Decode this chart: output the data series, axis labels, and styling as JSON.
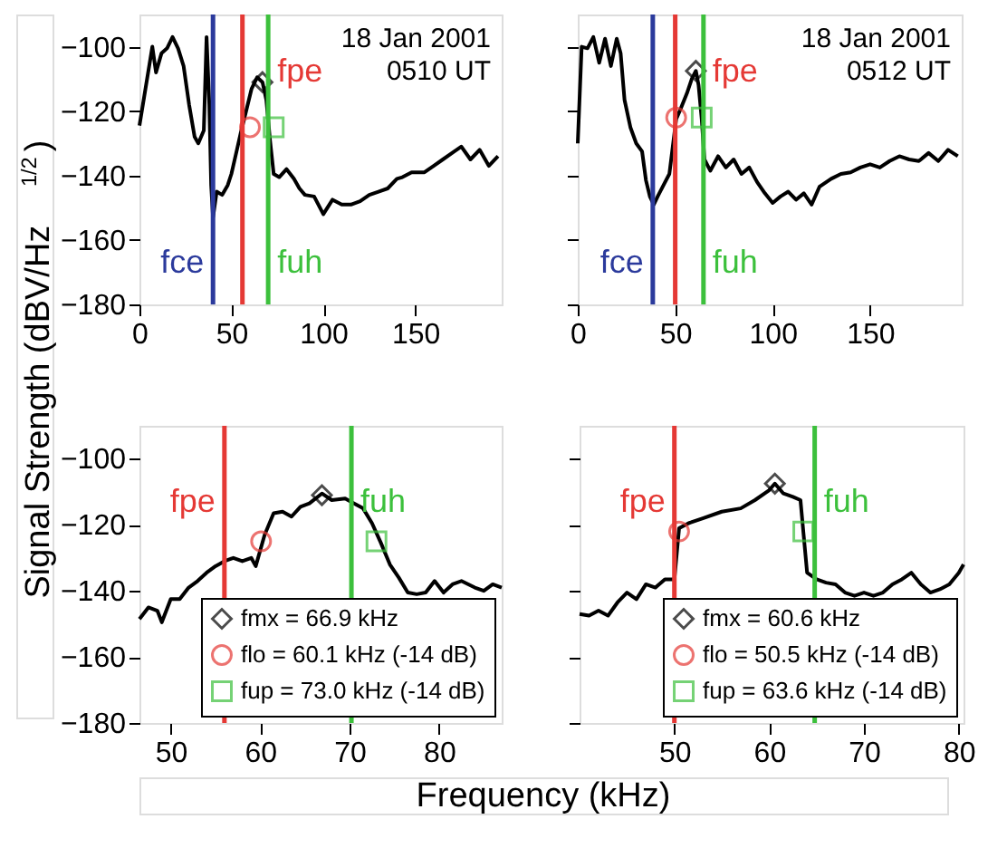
{
  "chart_data": [
    {
      "type": "line",
      "ylabel": "Signal Strength (dBV/Hz$^{1/2}$)",
      "annotations": [
        "18 Jan 2001",
        "0510 UT"
      ],
      "xlim": [
        0,
        197
      ],
      "ylim": [
        -180,
        -90
      ],
      "xticks": [
        0,
        50,
        100,
        150
      ],
      "yticks": [
        -180,
        -160,
        -140,
        -120,
        -100
      ],
      "ref_lines": [
        {
          "axis": "x",
          "value": 40,
          "label": "fce",
          "color": "#2b3a9c"
        },
        {
          "axis": "x",
          "value": 56,
          "label": "fpe",
          "color": "#e53935"
        },
        {
          "axis": "x",
          "value": 70,
          "label": "fuh",
          "color": "#3cc03c"
        }
      ],
      "series": [
        {
          "color": "#000000",
          "x": [
            0,
            3,
            7,
            9,
            12,
            15,
            18,
            21,
            24,
            27,
            30,
            32,
            35,
            36.5,
            38,
            39,
            40,
            42,
            45,
            48,
            50,
            53,
            55,
            58,
            61,
            64,
            66.9,
            69,
            71,
            73,
            76,
            80,
            84,
            87,
            90,
            95,
            100,
            105,
            110,
            115,
            120,
            125,
            130,
            135,
            140,
            143,
            148,
            155,
            160,
            165,
            170,
            175,
            180,
            185,
            190,
            195
          ],
          "values": [
            -124.5,
            -114,
            -100,
            -108,
            -102,
            -100.5,
            -97,
            -100.5,
            -106,
            -118,
            -128,
            -130,
            -126,
            -97,
            -118,
            -143,
            -153,
            -145,
            -146,
            -143,
            -139.5,
            -132,
            -127,
            -120,
            -113,
            -109.5,
            -111,
            -116.5,
            -129,
            -139.5,
            -140.5,
            -138,
            -141,
            -144,
            -146,
            -146.5,
            -152,
            -147.5,
            -149,
            -149,
            -148,
            -146,
            -145,
            -144,
            -141,
            -140.5,
            -139,
            -139,
            -137,
            -135,
            -133,
            -131,
            -135,
            -132,
            -137,
            -134
          ]
        },
        {
          "type": "scatter",
          "marker": "diamond",
          "color": "#000000",
          "x": [
            66.9
          ],
          "values": [
            -111
          ]
        },
        {
          "type": "scatter",
          "marker": "circle",
          "color": "#e53935",
          "x": [
            60.1
          ],
          "values": [
            -125
          ]
        },
        {
          "type": "scatter",
          "marker": "square",
          "color": "#3cc03c",
          "x": [
            73.0
          ],
          "values": [
            -125
          ]
        }
      ]
    },
    {
      "type": "line",
      "annotations": [
        "18 Jan 2001",
        "0512 UT"
      ],
      "xlim": [
        0,
        197
      ],
      "ylim": [
        -180,
        -90
      ],
      "xticks": [
        0,
        50,
        100,
        150
      ],
      "yticks": [
        -180,
        -160,
        -140,
        -120,
        -100
      ],
      "tick_labels": "x",
      "ref_lines": [
        {
          "axis": "x",
          "value": 38.5,
          "label": "fce",
          "color": "#2b3a9c"
        },
        {
          "axis": "x",
          "value": 50,
          "label": "fpe",
          "color": "#e53935"
        },
        {
          "axis": "x",
          "value": 64.5,
          "label": "fuh",
          "color": "#3cc03c"
        }
      ],
      "series": [
        {
          "color": "#000000",
          "x": [
            0,
            2,
            5,
            8,
            11,
            14,
            17,
            20,
            22,
            24,
            27,
            30,
            33,
            35,
            37,
            39,
            41,
            44,
            47,
            50.5,
            53,
            56,
            58.5,
            60.6,
            62,
            63.6,
            65,
            68,
            72,
            76,
            80,
            84,
            88,
            92,
            96,
            100,
            104,
            108,
            112,
            116,
            120,
            124,
            130,
            135,
            140,
            145,
            150,
            155,
            160,
            165,
            170,
            175,
            180,
            185,
            190,
            195
          ],
          "values": [
            -130,
            -100,
            -100.5,
            -97,
            -105,
            -97.5,
            -106,
            -97.5,
            -102,
            -116.5,
            -125,
            -130,
            -132.5,
            -141.5,
            -146.5,
            -149,
            -146.5,
            -143,
            -139.5,
            -122.5,
            -119,
            -114.5,
            -110,
            -107.5,
            -112,
            -122.5,
            -135,
            -138.5,
            -134,
            -137.5,
            -135,
            -139.5,
            -137.5,
            -142,
            -145.5,
            -148.5,
            -146.5,
            -145,
            -147.5,
            -145.5,
            -149,
            -143.5,
            -141,
            -139.5,
            -139,
            -137.5,
            -136.5,
            -137.5,
            -135.5,
            -134,
            -135,
            -135.5,
            -133,
            -135.5,
            -132,
            -134
          ]
        },
        {
          "type": "scatter",
          "marker": "diamond",
          "color": "#000000",
          "x": [
            60.6
          ],
          "values": [
            -107.5
          ]
        },
        {
          "type": "scatter",
          "marker": "circle",
          "color": "#e53935",
          "x": [
            50.5
          ],
          "values": [
            -122
          ]
        },
        {
          "type": "scatter",
          "marker": "square",
          "color": "#3cc03c",
          "x": [
            63.6
          ],
          "values": [
            -122
          ]
        }
      ]
    },
    {
      "type": "line",
      "xlabel": "Frequency (kHz)",
      "xlim": [
        46.5,
        87
      ],
      "ylim": [
        -180,
        -90
      ],
      "xticks": [
        50,
        60,
        70,
        80
      ],
      "yticks": [
        -180,
        -160,
        -140,
        -120,
        -100
      ],
      "legend": "bottom right",
      "ref_lines": [
        {
          "axis": "x",
          "value": 56,
          "label": "fpe",
          "color": "#e53935"
        },
        {
          "axis": "x",
          "value": 70.2,
          "label": "fuh",
          "color": "#3cc03c"
        }
      ],
      "series": [
        {
          "color": "#000000",
          "x": [
            46.5,
            47.5,
            48.5,
            49,
            50,
            51,
            52,
            53,
            54,
            55,
            56,
            57,
            58,
            59,
            59.5,
            60.5,
            61.5,
            62.5,
            63.5,
            64.5,
            65.5,
            66.9,
            68,
            69.5,
            70.5,
            71.5,
            72.5,
            73.5,
            74.5,
            75.5,
            76.5,
            77.5,
            78.5,
            79.5,
            80.5,
            81.5,
            82.5,
            84,
            85,
            86,
            87
          ],
          "values": [
            -148.5,
            -145,
            -146,
            -149.5,
            -142.5,
            -142.5,
            -139,
            -137,
            -134.5,
            -132.5,
            -131,
            -130,
            -131,
            -130,
            -132.5,
            -123,
            -116.5,
            -116,
            -117.5,
            -114.5,
            -113.5,
            -110.5,
            -112.5,
            -112,
            -113.5,
            -115,
            -119.5,
            -125.5,
            -132,
            -136,
            -140.5,
            -141,
            -140.5,
            -137,
            -140.5,
            -138,
            -137,
            -139,
            -140,
            -138,
            -139
          ]
        },
        {
          "type": "scatter",
          "name": "fmx = 66.9 kHz",
          "marker": "diamond",
          "color": "#000000",
          "x": [
            66.9
          ],
          "values": [
            -111
          ]
        },
        {
          "type": "scatter",
          "name": "flo = 60.1 kHz (-14 dB)",
          "marker": "circle",
          "color": "#e53935",
          "x": [
            60.1
          ],
          "values": [
            -125
          ]
        },
        {
          "type": "scatter",
          "name": "fup = 73.0 kHz (-14 dB)",
          "marker": "square",
          "color": "#3cc03c",
          "x": [
            73.0
          ],
          "values": [
            -125
          ]
        }
      ]
    },
    {
      "type": "line",
      "xlim": [
        40,
        80.5
      ],
      "ylim": [
        -180,
        -90
      ],
      "xticks": [
        50,
        60,
        70,
        80
      ],
      "yticks": [
        -180,
        -160,
        -140,
        -120,
        -100
      ],
      "tick_labels": "x",
      "legend": "bottom right",
      "ref_lines": [
        {
          "axis": "x",
          "value": 50,
          "label": "fpe",
          "color": "#e53935"
        },
        {
          "axis": "x",
          "value": 64.8,
          "label": "fuh",
          "color": "#3cc03c"
        }
      ],
      "series": [
        {
          "color": "#000000",
          "x": [
            40,
            41,
            42,
            43,
            44,
            45,
            46,
            47,
            48,
            49,
            50,
            50.5,
            51.5,
            53,
            55,
            57,
            58.5,
            60,
            60.6,
            61.5,
            62.5,
            63.3,
            63.6,
            64,
            65,
            66,
            67,
            68,
            69,
            70,
            71,
            72,
            73,
            74,
            75,
            76,
            77,
            78,
            79,
            80,
            80.5
          ],
          "values": [
            -147,
            -147.5,
            -146,
            -147.5,
            -143.5,
            -140.5,
            -142.5,
            -138,
            -139,
            -136.5,
            -136.5,
            -121,
            -119.5,
            -118,
            -116,
            -115,
            -112.5,
            -109.5,
            -107.5,
            -110.5,
            -111.5,
            -112.5,
            -122,
            -134.5,
            -136.5,
            -137.5,
            -138,
            -140.5,
            -141.5,
            -140.5,
            -141.5,
            -140.5,
            -138,
            -136.5,
            -134.5,
            -138,
            -140.5,
            -139.5,
            -138,
            -134.5,
            -132
          ]
        },
        {
          "type": "scatter",
          "name": "fmx = 60.6 kHz",
          "marker": "diamond",
          "color": "#000000",
          "x": [
            60.6
          ],
          "values": [
            -107.5
          ]
        },
        {
          "type": "scatter",
          "name": "flo = 50.5 kHz (-14 dB)",
          "marker": "circle",
          "color": "#e53935",
          "x": [
            50.5
          ],
          "values": [
            -122
          ]
        },
        {
          "type": "scatter",
          "name": "fup = 63.6 kHz (-14 dB)",
          "marker": "square",
          "color": "#3cc03c",
          "x": [
            63.6
          ],
          "values": [
            -122
          ]
        }
      ]
    }
  ]
}
